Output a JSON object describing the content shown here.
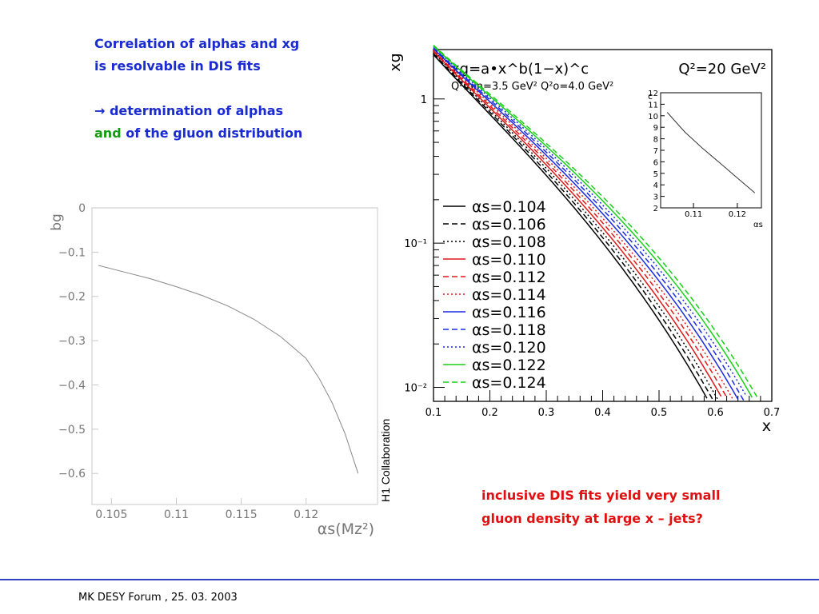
{
  "intro": {
    "line1": "Correlation of alphas and xg",
    "line2": "is resolvable in DIS fits",
    "arrow": "→",
    "line3": " determination of alphas",
    "line4_and": "and",
    "line4_rest": " of the gluon distribution"
  },
  "conclusion": {
    "line1": "inclusive DIS fits yield very small",
    "line2": "gluon density at large x – jets?"
  },
  "side_label": "H1 Collaboration",
  "footer": "MK DESY Forum , 25. 03. 2003",
  "colors": {
    "intro": "#1a2bd0",
    "and": "#139c13",
    "conclusion": "#e01010",
    "rule": "#3040c0"
  },
  "chart_data": [
    {
      "type": "line",
      "title": "",
      "xlabel": "αs(Mz²)",
      "ylabel": "bg",
      "xlim": [
        0.1035,
        0.1255
      ],
      "ylim": [
        -0.67,
        0.0
      ],
      "xticks": [
        0.105,
        0.11,
        0.115,
        0.12
      ],
      "xtick_labels": [
        "0.105",
        "0.11",
        "0.115",
        "0.12"
      ],
      "yticks": [
        0,
        -0.1,
        -0.2,
        -0.3,
        -0.4,
        -0.5,
        -0.6
      ],
      "ytick_labels": [
        "0",
        "−0.1",
        "−0.2",
        "−0.3",
        "−0.4",
        "−0.5",
        "−0.6"
      ],
      "grid": false,
      "series": [
        {
          "x": [
            0.104,
            0.106,
            0.108,
            0.11,
            0.112,
            0.114,
            0.116,
            0.118,
            0.12,
            0.121,
            0.122,
            0.123,
            0.124
          ],
          "y": [
            -0.13,
            -0.145,
            -0.16,
            -0.178,
            -0.198,
            -0.222,
            -0.252,
            -0.29,
            -0.34,
            -0.385,
            -0.44,
            -0.51,
            -0.6
          ]
        }
      ]
    },
    {
      "type": "line",
      "title": "xg=a•x^b(1−x)^c",
      "subtitle": "Q²min=3.5 GeV²   Q²o=4.0 GeV²",
      "annotation": "Q²=20 GeV²",
      "xlabel": "x",
      "ylabel": "xg",
      "yscale": "log",
      "xlim": [
        0.1,
        0.7
      ],
      "ylim": [
        0.008,
        2.2
      ],
      "xticks": [
        0.1,
        0.2,
        0.3,
        0.4,
        0.5,
        0.6,
        0.7
      ],
      "xtick_labels": [
        "0.1",
        "0.2",
        "0.3",
        "0.4",
        "0.5",
        "0.6",
        "0.7"
      ],
      "yticks": [
        1,
        0.1,
        0.01
      ],
      "ytick_labels": [
        "1",
        "10⁻¹",
        "10⁻²"
      ],
      "grid": false,
      "legend_position": "left",
      "x": [
        0.1,
        0.15,
        0.2,
        0.25,
        0.3,
        0.35,
        0.4,
        0.45,
        0.5,
        0.55,
        0.6,
        0.65,
        0.7
      ],
      "series": [
        {
          "name": "αs=0.104",
          "color": "#000000",
          "dash": "solid",
          "end_x": 0.588
        },
        {
          "name": "αs=0.106",
          "color": "#000000",
          "dash": "dashed",
          "end_x": 0.597
        },
        {
          "name": "αs=0.108",
          "color": "#000000",
          "dash": "dotted",
          "end_x": 0.606
        },
        {
          "name": "αs=0.110",
          "color": "#e01818",
          "dash": "solid",
          "end_x": 0.615
        },
        {
          "name": "αs=0.112",
          "color": "#e01818",
          "dash": "dashed",
          "end_x": 0.624
        },
        {
          "name": "αs=0.114",
          "color": "#e01818",
          "dash": "dotted",
          "end_x": 0.633
        },
        {
          "name": "αs=0.116",
          "color": "#1a2be0",
          "dash": "solid",
          "end_x": 0.642
        },
        {
          "name": "αs=0.118",
          "color": "#1a2be0",
          "dash": "dashed",
          "end_x": 0.651
        },
        {
          "name": "αs=0.120",
          "color": "#1a2be0",
          "dash": "dotted",
          "end_x": 0.66
        },
        {
          "name": "αs=0.122",
          "color": "#18d018",
          "dash": "solid",
          "end_x": 0.669
        },
        {
          "name": "αs=0.124",
          "color": "#18d018",
          "dash": "dashed",
          "end_x": 0.678
        }
      ],
      "inset": {
        "type": "line",
        "xlabel": "αs",
        "ylabel": "c",
        "xlim": [
          0.1025,
          0.1255
        ],
        "ylim": [
          2,
          12
        ],
        "xticks": [
          0.11,
          0.12
        ],
        "xtick_labels": [
          "0.11",
          "0.12"
        ],
        "yticks": [
          2,
          3,
          4,
          5,
          6,
          7,
          8,
          9,
          10,
          11,
          12
        ],
        "x": [
          0.104,
          0.108,
          0.112,
          0.116,
          0.12,
          0.124
        ],
        "y": [
          10.3,
          8.6,
          7.2,
          5.9,
          4.6,
          3.3
        ]
      }
    }
  ]
}
